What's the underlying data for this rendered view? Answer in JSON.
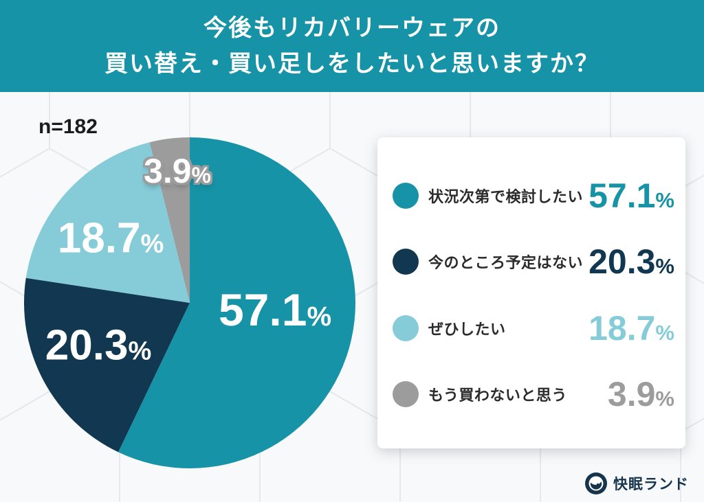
{
  "header": {
    "title_line1": "今後もリカバリーウェアの",
    "title_line2": "買い替え・買い足しをしたいと思いますか？",
    "bg_color": "#1693a6",
    "text_color": "#ffffff"
  },
  "sample_label": "n=182",
  "chart_data": {
    "type": "pie",
    "title": "今後もリカバリーウェアの買い替え・買い足しをしたいと思いますか？",
    "sample_size_label": "n=182",
    "unit": "%",
    "start_angle_deg": 0,
    "direction": "clockwise",
    "legend_position": "right",
    "segments": [
      {
        "label": "状況次第で検討したい",
        "value": 57.1,
        "color": "#1693a6"
      },
      {
        "label": "今のところ予定はない",
        "value": 20.3,
        "color": "#113850"
      },
      {
        "label": "ぜひしたい",
        "value": 18.7,
        "color": "#85ccd8"
      },
      {
        "label": "もう買わないと思う",
        "value": 3.9,
        "color": "#9c9c9c"
      }
    ]
  },
  "footer": {
    "brand": "快眠ランド",
    "brand_color": "#16354d"
  }
}
